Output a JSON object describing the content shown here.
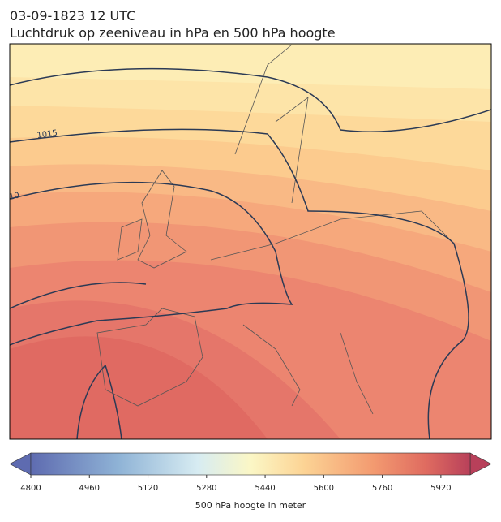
{
  "header": {
    "title_line1": "03-09-1823 12 UTC",
    "title_line2": "Luchtdruk op zeeniveau in hPa en 500 hPa hoogte"
  },
  "map": {
    "contour_labels": [
      "1015",
      "10"
    ]
  },
  "colorbar": {
    "clim": [
      4800,
      6000
    ],
    "ticks": [
      4800,
      4960,
      5120,
      5280,
      5440,
      5600,
      5760,
      5920
    ],
    "label": "500 hPa hoogte in meter"
  }
}
